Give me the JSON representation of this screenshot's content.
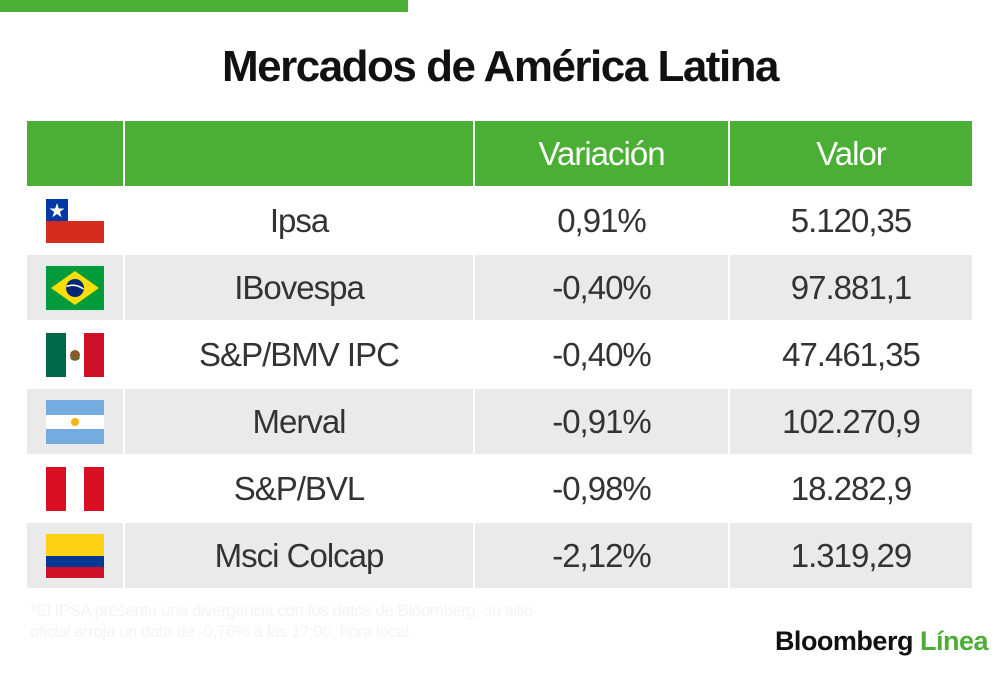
{
  "title": "Mercados de América Latina",
  "colors": {
    "accent": "#4caf35",
    "row_alt": "#eaeaea",
    "text": "#333333"
  },
  "table": {
    "headers": [
      "",
      "",
      "Variación",
      "Valor"
    ],
    "rows": [
      {
        "flag": "chile-flag-icon",
        "name": "Ipsa",
        "variation": "0,91%",
        "value": "5.120,35"
      },
      {
        "flag": "brazil-flag-icon",
        "name": "IBovespa",
        "variation": "-0,40%",
        "value": "97.881,1"
      },
      {
        "flag": "mexico-flag-icon",
        "name": "S&P/BMV IPC",
        "variation": "-0,40%",
        "value": "47.461,35"
      },
      {
        "flag": "argentina-flag-icon",
        "name": "Merval",
        "variation": "-0,91%",
        "value": "102.270,9"
      },
      {
        "flag": "peru-flag-icon",
        "name": "S&P/BVL",
        "variation": "-0,98%",
        "value": "18.282,9"
      },
      {
        "flag": "colombia-flag-icon",
        "name": "Msci Colcap",
        "variation": "-2,12%",
        "value": "1.319,29"
      }
    ]
  },
  "footnote": "*El IPSA presenta una divergencia con los datos de Bloomberg, su sitio oficial arroja un dato de -0,76% a las 17:00, hora local.",
  "brand": {
    "part1": "Bloomberg",
    "part2": "Línea"
  }
}
